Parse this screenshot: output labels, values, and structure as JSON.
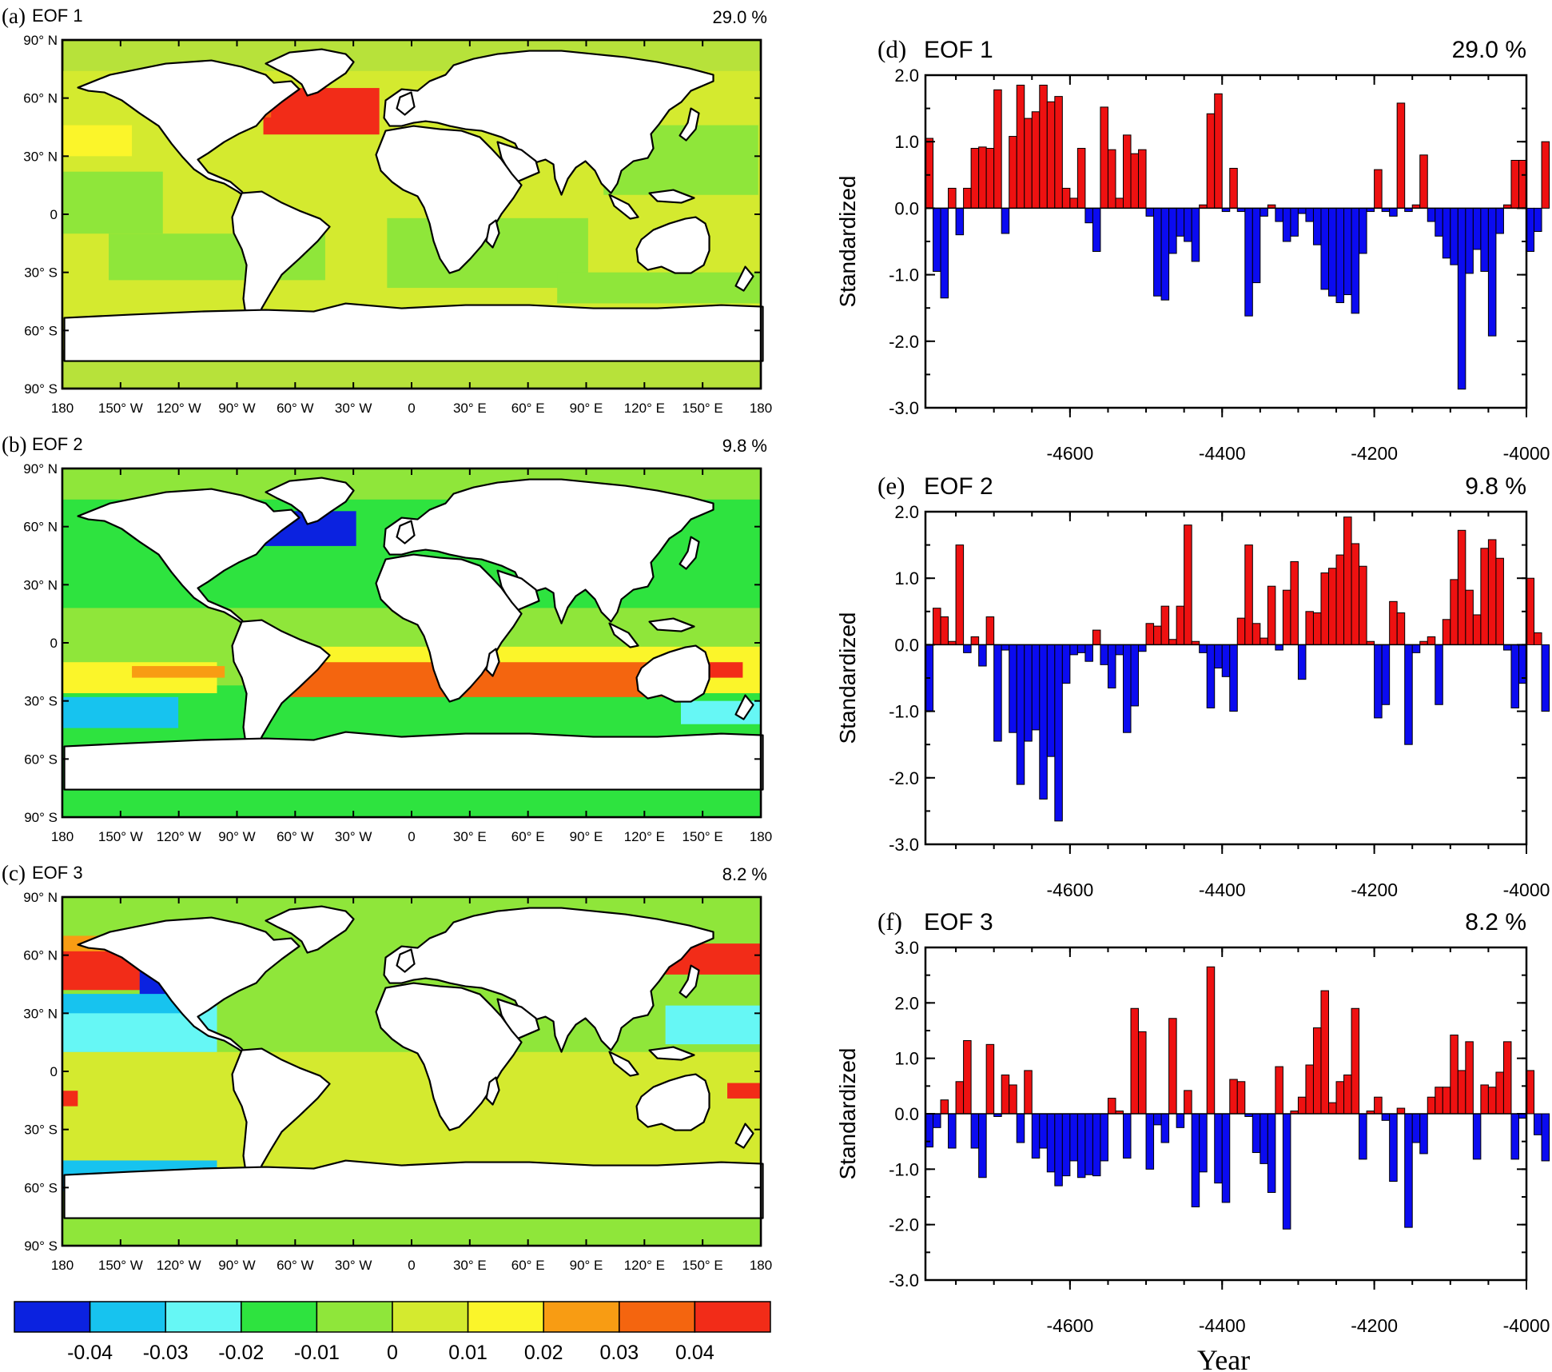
{
  "figure": {
    "map_panels": [
      {
        "label": "(a)",
        "title": "EOF 1",
        "percent": "29.0 %"
      },
      {
        "label": "(b)",
        "title": "EOF 2",
        "percent": "9.8 %"
      },
      {
        "label": "(c)",
        "title": "EOF 3",
        "percent": "8.2 %"
      }
    ],
    "map_axes": {
      "lat_labels": [
        "90° N",
        "60° N",
        "30° N",
        "0",
        "30° S",
        "60° S",
        "90° S"
      ],
      "lon_labels": [
        "180",
        "150° W",
        "120° W",
        "90° W",
        "60° W",
        "30° W",
        "0",
        "30° E",
        "60° E",
        "90° E",
        "120° E",
        "150° E",
        "180"
      ]
    },
    "colorbar": {
      "labels": [
        "-0.04",
        "-0.03",
        "-0.02",
        "-0.01",
        "0",
        "0.01",
        "0.02",
        "0.03",
        "0.04"
      ],
      "colors": [
        "#0b22e0",
        "#17c3ef",
        "#66f7f5",
        "#2ee33f",
        "#8fe63a",
        "#d4ea2f",
        "#fbf52a",
        "#f89c13",
        "#f4650f",
        "#f22c18"
      ]
    },
    "colors": {
      "positive": "#ee1111",
      "negative": "#0b0bf0"
    },
    "xlabel": "Year",
    "ylabel": "Standardized"
  },
  "chart_data": [
    {
      "type": "bar",
      "label": "(d)",
      "title": "EOF 1",
      "percent": "29.0 %",
      "xlabel": "Year",
      "ylabel": "Standardized",
      "xlim": [
        -4790,
        -4000
      ],
      "xticks": [
        "-4600",
        "-4400",
        "-4200",
        "-4000"
      ],
      "ylim": [
        -3.0,
        2.0
      ],
      "yticks": [
        "2.0",
        "1.0",
        "0.0",
        "-1.0",
        "-2.0",
        "-3.0"
      ],
      "bar_width_years": 10,
      "start_year": -4790,
      "values": [
        1.05,
        -0.95,
        -1.35,
        0.3,
        -0.4,
        0.3,
        0.9,
        0.92,
        0.9,
        1.78,
        -0.38,
        1.08,
        1.85,
        1.35,
        1.45,
        1.85,
        1.6,
        1.68,
        0.3,
        0.15,
        0.9,
        -0.22,
        -0.65,
        1.52,
        0.88,
        0.15,
        1.1,
        0.82,
        0.88,
        -0.12,
        -1.32,
        -1.38,
        -0.68,
        -0.42,
        -0.5,
        -0.8,
        0.05,
        1.42,
        1.72,
        -0.05,
        0.6,
        -0.05,
        -1.62,
        -1.12,
        -0.12,
        0.05,
        -0.2,
        -0.5,
        -0.42,
        -0.08,
        -0.2,
        -0.55,
        -1.22,
        -1.32,
        -1.42,
        -1.3,
        -1.58,
        -0.68,
        -0.05,
        0.58,
        -0.05,
        -0.12,
        1.58,
        -0.05,
        0.05,
        0.8,
        -0.2,
        -0.42,
        -0.75,
        -0.85,
        -2.72,
        -0.98,
        -0.62,
        -0.95,
        -1.92,
        -0.38,
        0.05,
        0.72,
        0.72,
        -0.65,
        -0.35,
        1.0
      ]
    },
    {
      "type": "bar",
      "label": "(e)",
      "title": "EOF 2",
      "percent": "9.8 %",
      "xlabel": "Year",
      "ylabel": "Standardized",
      "xlim": [
        -4790,
        -4000
      ],
      "xticks": [
        "-4600",
        "-4400",
        "-4200",
        "-4000"
      ],
      "ylim": [
        -3.0,
        2.0
      ],
      "yticks": [
        "2.0",
        "1.0",
        "0.0",
        "-1.0",
        "-2.0",
        "-3.0"
      ],
      "bar_width_years": 10,
      "start_year": -4790,
      "values": [
        -1.0,
        0.55,
        0.42,
        0.05,
        1.5,
        -0.12,
        0.12,
        -0.32,
        0.42,
        -1.45,
        -0.08,
        -1.32,
        -2.1,
        -1.45,
        -1.28,
        -2.32,
        -1.68,
        -2.65,
        -0.58,
        -0.15,
        -0.12,
        -0.25,
        0.22,
        -0.3,
        -0.65,
        -0.15,
        -1.32,
        -0.92,
        -0.1,
        0.32,
        0.28,
        0.58,
        0.08,
        0.58,
        1.8,
        0.05,
        -0.12,
        -0.95,
        -0.35,
        -0.48,
        -1.0,
        0.4,
        1.5,
        0.32,
        0.1,
        0.88,
        -0.08,
        0.82,
        1.25,
        -0.52,
        0.5,
        0.48,
        1.08,
        1.15,
        1.35,
        1.92,
        1.52,
        1.18,
        0.05,
        -1.1,
        -0.9,
        0.65,
        0.48,
        -1.5,
        -0.12,
        0.05,
        0.12,
        -0.9,
        0.38,
        0.98,
        1.72,
        0.82,
        0.45,
        1.45,
        1.58,
        1.3,
        -0.08,
        -0.95,
        -0.58,
        1.0,
        0.18,
        -1.0
      ]
    },
    {
      "type": "bar",
      "label": "(f)",
      "title": "EOF 3",
      "percent": "8.2 %",
      "xlabel": "Year",
      "ylabel": "Standardized",
      "xlim": [
        -4790,
        -4000
      ],
      "xticks": [
        "-4600",
        "-4400",
        "-4200",
        "-4000"
      ],
      "ylim": [
        -3.0,
        3.0
      ],
      "yticks": [
        "3.0",
        "2.0",
        "1.0",
        "0.0",
        "-1.0",
        "-2.0",
        "-3.0"
      ],
      "bar_width_years": 10,
      "start_year": -4790,
      "values": [
        -0.6,
        -0.25,
        0.25,
        -0.62,
        0.58,
        1.32,
        -0.62,
        -1.15,
        1.25,
        -0.05,
        0.7,
        0.52,
        -0.52,
        0.78,
        -0.8,
        -0.62,
        -1.05,
        -1.3,
        -1.12,
        -0.85,
        -1.15,
        -1.1,
        -1.12,
        -0.85,
        0.28,
        0.05,
        -0.8,
        1.9,
        1.48,
        -1.0,
        -0.2,
        -0.52,
        1.72,
        -0.25,
        0.42,
        -1.68,
        -1.05,
        2.65,
        -1.25,
        -1.6,
        0.62,
        0.58,
        -0.05,
        -0.7,
        -0.9,
        -1.42,
        0.85,
        -2.08,
        0.05,
        0.3,
        0.88,
        1.55,
        2.22,
        0.2,
        0.58,
        0.7,
        1.9,
        -0.82,
        0.05,
        0.3,
        -0.12,
        -1.22,
        0.1,
        -2.05,
        -0.52,
        -0.72,
        0.3,
        0.48,
        0.48,
        1.42,
        0.78,
        1.3,
        -0.82,
        0.52,
        0.48,
        0.75,
        1.3,
        -0.82,
        -0.08,
        0.78,
        -0.38,
        -0.85
      ]
    }
  ]
}
